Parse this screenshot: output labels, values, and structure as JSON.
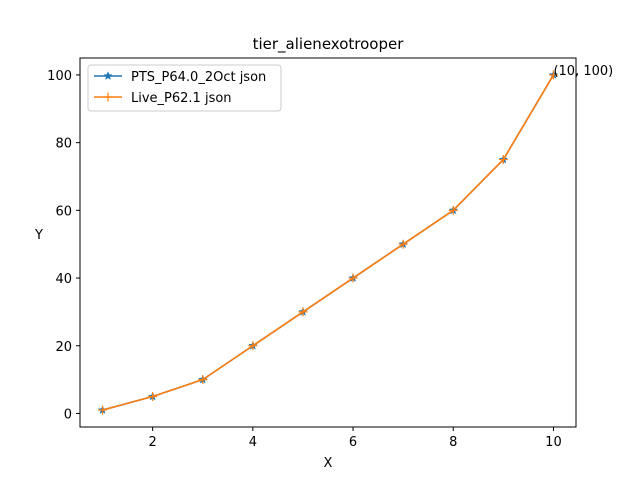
{
  "chart_data": {
    "type": "line",
    "title": "tier_alienexotrooper",
    "xlabel": "X",
    "ylabel": "Y",
    "xlim": [
      0.55,
      10.45
    ],
    "ylim": [
      -4,
      105
    ],
    "xticks": [
      2,
      4,
      6,
      8,
      10
    ],
    "yticks": [
      0,
      20,
      40,
      60,
      80,
      100
    ],
    "grid": false,
    "legend_position": "top-left",
    "x": [
      1,
      2,
      3,
      4,
      5,
      6,
      7,
      8,
      9,
      10
    ],
    "series": [
      {
        "name": "PTS_P64.0_2Oct json",
        "values": [
          1,
          5,
          10,
          20,
          30,
          40,
          50,
          60,
          75,
          100
        ],
        "color": "#1f77b4",
        "marker": "star"
      },
      {
        "name": "Live_P62.1 json",
        "values": [
          1,
          5,
          10,
          20,
          30,
          40,
          50,
          60,
          75,
          100
        ],
        "color": "#ff7f0e",
        "marker": "plus"
      }
    ],
    "annotations": [
      {
        "text": "(10, 100)",
        "x": 10,
        "y": 100
      }
    ]
  }
}
